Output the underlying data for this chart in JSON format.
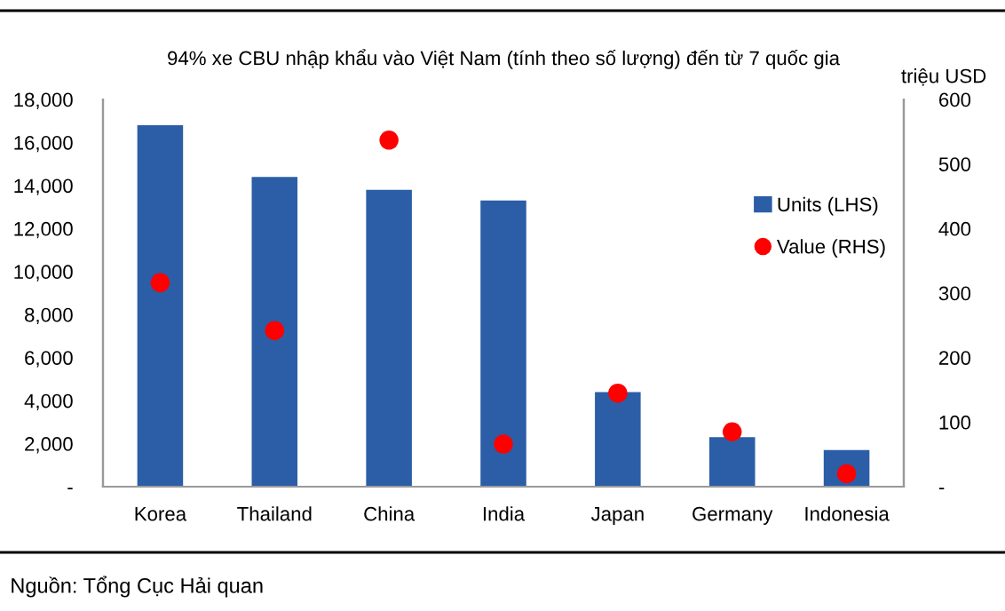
{
  "chart_data": {
    "type": "bar",
    "title": "94% xe CBU nhập khẩu vào Việt Nam (tính theo số lượng) đến từ 7 quốc gia",
    "y2label": "triệu USD",
    "categories": [
      "Korea",
      "Thailand",
      "China",
      "India",
      "Japan",
      "Germany",
      "Indonesia"
    ],
    "series": [
      {
        "name": "Units (LHS)",
        "color": "#2b5ea7",
        "values": [
          16800,
          14400,
          13800,
          13300,
          4400,
          2300,
          1700
        ]
      },
      {
        "name": "Value (RHS)",
        "type": "scatter",
        "axis": "y2",
        "color": "#ff0000",
        "values": [
          316,
          242,
          537,
          66,
          145,
          85,
          20
        ]
      }
    ],
    "ylim": [
      0,
      18000
    ],
    "yticks": [
      {
        "value": 0,
        "label": "-"
      },
      {
        "value": 2000,
        "label": "2,000"
      },
      {
        "value": 4000,
        "label": "4,000"
      },
      {
        "value": 6000,
        "label": "6,000"
      },
      {
        "value": 8000,
        "label": "8,000"
      },
      {
        "value": 10000,
        "label": "10,000"
      },
      {
        "value": 12000,
        "label": "12,000"
      },
      {
        "value": 14000,
        "label": "14,000"
      },
      {
        "value": 16000,
        "label": "16,000"
      },
      {
        "value": 18000,
        "label": "18,000"
      }
    ],
    "y2lim": [
      0,
      600
    ],
    "y2ticks": [
      {
        "value": 0,
        "label": "-"
      },
      100,
      200,
      300,
      400,
      500,
      600
    ],
    "marker": "circle",
    "legend": "right",
    "grid": false,
    "annotations": [
      "Nguồn: Tổng Cục Hải quan"
    ]
  }
}
